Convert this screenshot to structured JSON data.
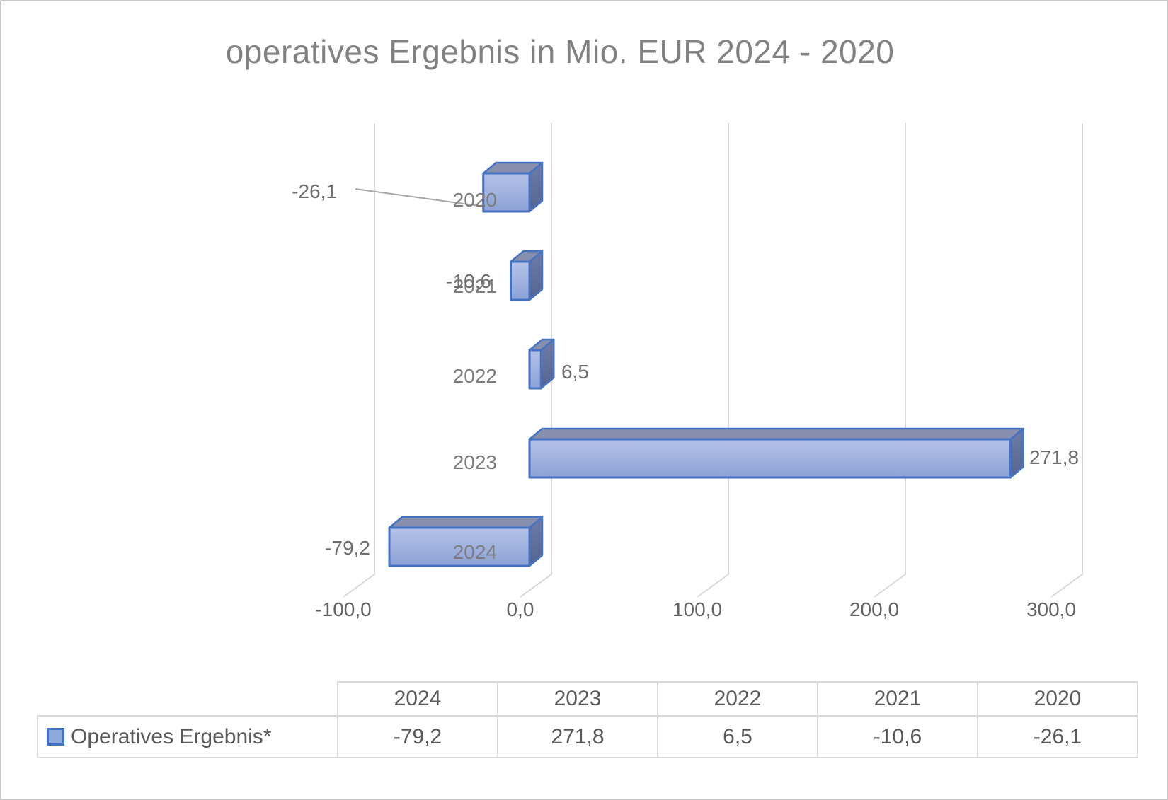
{
  "chart_data": {
    "type": "bar",
    "orientation": "horizontal-3d",
    "title": "operatives Ergebnis in Mio. EUR 2024 - 2020",
    "xlabel": "",
    "ylabel": "",
    "xlim": [
      -100,
      300
    ],
    "grid": true,
    "categories": [
      "2020",
      "2021",
      "2022",
      "2023",
      "2024"
    ],
    "series": [
      {
        "name": "Operatives Ergebnis*",
        "values": [
          -26.1,
          -10.6,
          6.5,
          271.8,
          -79.2
        ]
      }
    ],
    "values": [
      -26.1,
      -10.6,
      6.5,
      271.8,
      -79.2
    ],
    "value_labels": [
      "-26,1",
      "-10,6",
      "6,5",
      "271,8",
      "-79,2"
    ],
    "x_ticks": [
      "-100,0",
      "0,0",
      "100,0",
      "200,0",
      "300,0"
    ]
  },
  "table": {
    "columns": [
      "2024",
      "2023",
      "2022",
      "2021",
      "2020"
    ],
    "rows": [
      {
        "label": "Operatives Ergebnis*",
        "values": [
          "-79,2",
          "271,8",
          "6,5",
          "-10,6",
          "-26,1"
        ]
      }
    ]
  },
  "colors": {
    "bar_border": "#4472c4",
    "bar_front_light": "#b5c2e8",
    "bar_front_dark": "#8ca2d6",
    "bar_top": "#878fac",
    "bar_side_light": "#6d7da8",
    "bar_side_dark": "#566590",
    "gridline": "#d9d9d9",
    "leader_line": "#a6a6a6",
    "legend_fill": "#8eaadb"
  }
}
